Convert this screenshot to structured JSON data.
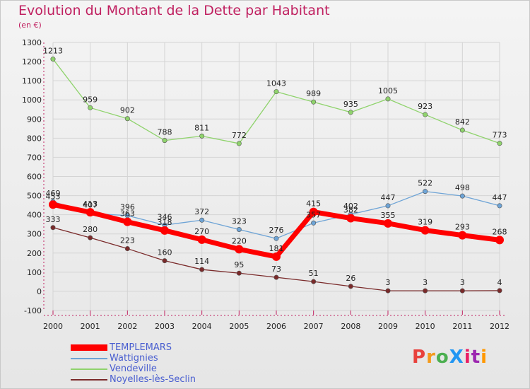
{
  "title": "Evolution du Montant de la Dette par Habitant",
  "subtitle": "(en €)",
  "logo": {
    "text": "ProXiti",
    "colors": [
      "#e8413c",
      "#f39a1c",
      "#4caf50",
      "#2196f3",
      "#e91e63",
      "#9c27b0",
      "#ff9800"
    ]
  },
  "chart_data": {
    "type": "line",
    "title": "Evolution du Montant de la Dette par Habitant",
    "ylabel": "(en €)",
    "xlabel": "",
    "ylim": [
      -100,
      1300
    ],
    "yticks": [
      "-100",
      "0",
      "100",
      "200",
      "300",
      "400",
      "500",
      "600",
      "700",
      "800",
      "900",
      "1000",
      "1100",
      "1200",
      "1300"
    ],
    "x": [
      "2000",
      "2001",
      "2002",
      "2003",
      "2004",
      "2005",
      "2006",
      "2007",
      "2008",
      "2009",
      "2010",
      "2011",
      "2012"
    ],
    "grid": true,
    "legend": "bottom-left",
    "series": [
      {
        "name": "Vendeville",
        "color": "#8fd36c",
        "width": 1.3,
        "labels": true,
        "values": [
          1213,
          959,
          902,
          788,
          811,
          772,
          1043,
          989,
          935,
          1005,
          923,
          842,
          773
        ]
      },
      {
        "name": "Wattignies",
        "color": "#6ea4d6",
        "width": 1.3,
        "labels": true,
        "values": [
          469,
          407,
          396,
          346,
          372,
          323,
          276,
          357,
          402,
          447,
          522,
          498,
          447
        ]
      },
      {
        "name": "Noyelles-lès-Seclin",
        "color": "#7a2a2a",
        "width": 1.3,
        "labels": true,
        "values": [
          333,
          280,
          223,
          160,
          114,
          95,
          73,
          51,
          26,
          3,
          3,
          3,
          4
        ]
      },
      {
        "name": "TEMPLEMARS",
        "color": "#ff0000",
        "width": 7,
        "labels": true,
        "values": [
          453,
          413,
          363,
          318,
          270,
          220,
          181,
          415,
          382,
          355,
          319,
          293,
          268
        ]
      }
    ],
    "legend_order": [
      "TEMPLEMARS",
      "Wattignies",
      "Vendeville",
      "Noyelles-lès-Seclin"
    ]
  }
}
